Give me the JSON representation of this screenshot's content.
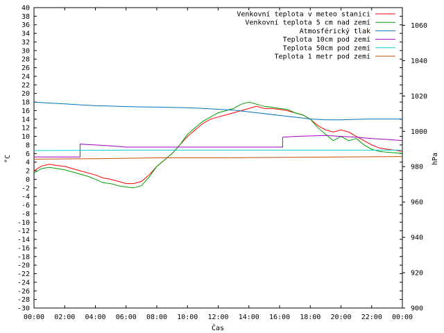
{
  "chart_data": {
    "type": "line",
    "xlabel": "Čas",
    "ylabel": "°C",
    "y2label": "hPa",
    "xlim": [
      0,
      24
    ],
    "ylim": [
      -30,
      40
    ],
    "y2lim": [
      900,
      1070
    ],
    "x_ticks": [
      "00:00",
      "02:00",
      "04:00",
      "06:00",
      "08:00",
      "10:00",
      "12:00",
      "14:00",
      "16:00",
      "18:00",
      "20:00",
      "22:00",
      "00:00"
    ],
    "y_ticks": [
      40,
      38,
      36,
      34,
      32,
      30,
      28,
      26,
      24,
      22,
      20,
      18,
      16,
      14,
      12,
      10,
      8,
      6,
      4,
      2,
      0,
      -2,
      -4,
      -6,
      -8,
      -10,
      -12,
      -14,
      -16,
      -18,
      -20,
      -22,
      -24,
      -26,
      -28,
      -30
    ],
    "y2_ticks": [
      1060,
      1040,
      1020,
      1000,
      980,
      960,
      940,
      920,
      900
    ],
    "grid": false,
    "legend_position": "top-right",
    "series": [
      {
        "name": "Venkovní teplota v meteo stanici",
        "color": "#ff0000",
        "axis": "left",
        "points": [
          [
            0,
            2
          ],
          [
            0.5,
            3.1
          ],
          [
            1,
            3.5
          ],
          [
            1.5,
            3.2
          ],
          [
            2,
            3
          ],
          [
            2.5,
            2.5
          ],
          [
            3,
            2
          ],
          [
            3.5,
            1.5
          ],
          [
            4,
            1
          ],
          [
            4.5,
            0.3
          ],
          [
            5,
            0
          ],
          [
            5.5,
            -0.5
          ],
          [
            6,
            -1
          ],
          [
            6.5,
            -1
          ],
          [
            7,
            -0.5
          ],
          [
            7.5,
            1
          ],
          [
            8,
            3
          ],
          [
            8.5,
            4.5
          ],
          [
            9,
            6
          ],
          [
            9.5,
            8
          ],
          [
            10,
            10
          ],
          [
            10.5,
            11.5
          ],
          [
            11,
            13
          ],
          [
            11.5,
            14
          ],
          [
            12,
            14.5
          ],
          [
            12.5,
            15
          ],
          [
            13,
            15.5
          ],
          [
            13.5,
            16
          ],
          [
            14,
            16.5
          ],
          [
            14.5,
            17
          ],
          [
            15,
            16.5
          ],
          [
            15.5,
            16.5
          ],
          [
            16,
            16.3
          ],
          [
            16.5,
            16
          ],
          [
            17,
            15.5
          ],
          [
            17.5,
            15
          ],
          [
            18,
            14
          ],
          [
            18.5,
            12.5
          ],
          [
            19,
            11.5
          ],
          [
            19.5,
            11
          ],
          [
            20,
            11.5
          ],
          [
            20.5,
            11
          ],
          [
            21,
            10
          ],
          [
            21.5,
            9
          ],
          [
            22,
            8
          ],
          [
            22.5,
            7.3
          ],
          [
            23,
            7
          ],
          [
            23.5,
            6.8
          ],
          [
            24,
            6.5
          ]
        ]
      },
      {
        "name": "Venkovní teplota 5 cm nad zemí",
        "color": "#00a000",
        "axis": "left",
        "points": [
          [
            0,
            1.5
          ],
          [
            0.5,
            2.5
          ],
          [
            1,
            2.8
          ],
          [
            1.5,
            2.5
          ],
          [
            2,
            2.2
          ],
          [
            2.5,
            1.7
          ],
          [
            3,
            1.2
          ],
          [
            3.5,
            0.7
          ],
          [
            4,
            0
          ],
          [
            4.5,
            -0.8
          ],
          [
            5,
            -1
          ],
          [
            5.5,
            -1.5
          ],
          [
            6,
            -1.8
          ],
          [
            6.5,
            -2
          ],
          [
            7,
            -1.5
          ],
          [
            7.5,
            0.5
          ],
          [
            8,
            3
          ],
          [
            8.5,
            4.5
          ],
          [
            9,
            6
          ],
          [
            9.5,
            8
          ],
          [
            10,
            10.5
          ],
          [
            10.5,
            12
          ],
          [
            11,
            13.5
          ],
          [
            11.5,
            14.5
          ],
          [
            12,
            15.5
          ],
          [
            12.5,
            16
          ],
          [
            13,
            16.5
          ],
          [
            13.5,
            17.5
          ],
          [
            14,
            18
          ],
          [
            14.5,
            17.5
          ],
          [
            15,
            17
          ],
          [
            15.5,
            16.8
          ],
          [
            16,
            16.5
          ],
          [
            16.5,
            16.3
          ],
          [
            17,
            15.5
          ],
          [
            17.5,
            15
          ],
          [
            18,
            14
          ],
          [
            18.5,
            12
          ],
          [
            19,
            10.5
          ],
          [
            19.5,
            9
          ],
          [
            20,
            10
          ],
          [
            20.5,
            9
          ],
          [
            21,
            9.5
          ],
          [
            21.5,
            8
          ],
          [
            22,
            7
          ],
          [
            22.5,
            6.5
          ],
          [
            23,
            6.3
          ],
          [
            23.5,
            6.2
          ],
          [
            24,
            6
          ]
        ]
      },
      {
        "name": "Atmosférický tlak",
        "color": "#0070c0",
        "axis": "right",
        "points": [
          [
            0,
            1016.5
          ],
          [
            1,
            1016
          ],
          [
            2,
            1015.5
          ],
          [
            3,
            1015
          ],
          [
            4,
            1014.5
          ],
          [
            5,
            1014.3
          ],
          [
            6,
            1014
          ],
          [
            7,
            1013.8
          ],
          [
            8,
            1013.7
          ],
          [
            9,
            1013.5
          ],
          [
            10,
            1013.3
          ],
          [
            11,
            1013
          ],
          [
            12,
            1012.5
          ],
          [
            13,
            1012
          ],
          [
            14,
            1011
          ],
          [
            15,
            1010
          ],
          [
            16,
            1009
          ],
          [
            17,
            1008
          ],
          [
            18,
            1007
          ],
          [
            19,
            1006.5
          ],
          [
            20,
            1006.5
          ],
          [
            21,
            1006.8
          ],
          [
            22,
            1007
          ],
          [
            23,
            1007
          ],
          [
            24,
            1007
          ]
        ]
      },
      {
        "name": "Teplota 10cm pod zemí",
        "color": "#a000c0",
        "axis": "left",
        "points": [
          [
            0,
            5.2
          ],
          [
            3,
            5.2
          ],
          [
            3,
            8.2
          ],
          [
            4,
            8
          ],
          [
            5,
            7.8
          ],
          [
            6,
            7.5
          ],
          [
            7,
            7.5
          ],
          [
            9,
            7.5
          ],
          [
            12,
            7.5
          ],
          [
            14,
            7.5
          ],
          [
            16,
            7.5
          ],
          [
            16.2,
            7.5
          ],
          [
            16.2,
            9.8
          ],
          [
            17,
            10
          ],
          [
            19,
            10.2
          ],
          [
            20,
            10
          ],
          [
            21,
            9.8
          ],
          [
            22,
            9.5
          ],
          [
            23,
            9.3
          ],
          [
            24,
            9
          ]
        ]
      },
      {
        "name": "Teplota 50cm pod zemí",
        "color": "#00d0d0",
        "axis": "left",
        "points": [
          [
            0,
            6.7
          ],
          [
            6,
            6.8
          ],
          [
            12,
            6.8
          ],
          [
            18,
            6.8
          ],
          [
            24,
            6.8
          ]
        ]
      },
      {
        "name": "Teplota 1 metr pod zemí",
        "color": "#c05000",
        "axis": "left",
        "points": [
          [
            0,
            4.7
          ],
          [
            4,
            4.8
          ],
          [
            8,
            5
          ],
          [
            12,
            5
          ],
          [
            16,
            5.1
          ],
          [
            20,
            5.2
          ],
          [
            24,
            5.3
          ]
        ]
      }
    ]
  }
}
